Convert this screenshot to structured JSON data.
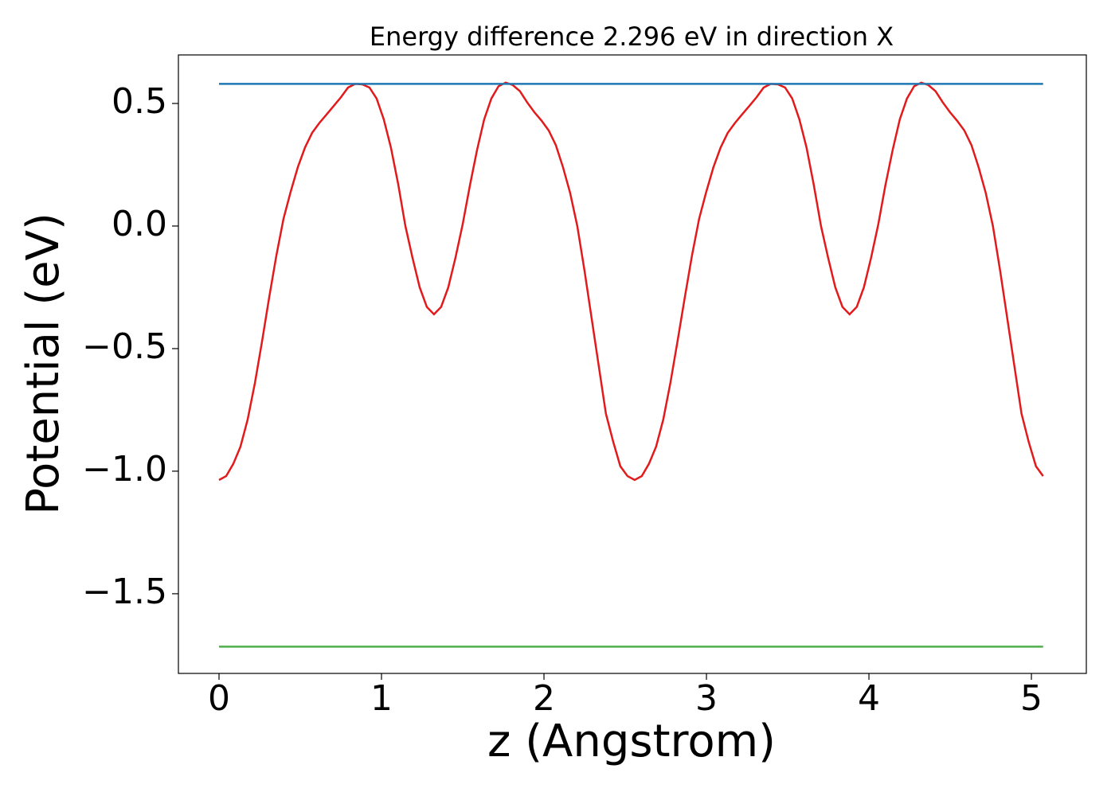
{
  "chart_data": {
    "type": "line",
    "title": "Energy difference 2.296 eV in direction X",
    "xlabel": "z (Angstrom)",
    "ylabel": "Potential (eV)",
    "xlim": [
      -0.25,
      5.338
    ],
    "ylim": [
      -1.825,
      0.698
    ],
    "xticks": [
      0,
      1,
      2,
      3,
      4,
      5
    ],
    "yticks": [
      0.5,
      {
        "value": 0,
        "label": "0.0"
      },
      {
        "value": -0.5,
        "label": "−0.5"
      },
      {
        "value": -1,
        "label": "−1.0"
      },
      {
        "value": -1.5,
        "label": "−1.5"
      }
    ],
    "grid": false,
    "series": [
      {
        "color": "#e31a1c",
        "x": [
          0,
          0.044,
          0.088,
          0.132,
          0.176,
          0.221,
          0.265,
          0.309,
          0.353,
          0.397,
          0.441,
          0.485,
          0.529,
          0.573,
          0.617,
          0.662,
          0.706,
          0.75,
          0.794,
          0.838,
          0.882,
          0.926,
          0.97,
          1.014,
          1.058,
          1.103,
          1.147,
          1.191,
          1.235,
          1.279,
          1.323,
          1.367,
          1.411,
          1.455,
          1.499,
          1.544,
          1.588,
          1.632,
          1.676,
          1.72,
          1.764,
          1.808,
          1.852,
          1.896,
          1.94,
          1.985,
          2.029,
          2.073,
          2.117,
          2.161,
          2.205,
          2.249,
          2.293,
          2.337,
          2.381,
          2.426,
          2.47,
          2.514,
          2.558,
          2.602,
          2.646,
          2.69,
          2.734,
          2.778,
          2.822,
          2.867,
          2.911,
          2.955,
          2.999,
          3.043,
          3.087,
          3.131,
          3.175,
          3.219,
          3.264,
          3.308,
          3.352,
          3.396,
          3.44,
          3.484,
          3.528,
          3.572,
          3.616,
          3.66,
          3.705,
          3.749,
          3.793,
          3.837,
          3.881,
          3.925,
          3.969,
          4.013,
          4.057,
          4.101,
          4.146,
          4.19,
          4.234,
          4.278,
          4.322,
          4.366,
          4.41,
          4.454,
          4.498,
          4.542,
          4.587,
          4.631,
          4.675,
          4.719,
          4.763,
          4.807,
          4.851,
          4.895,
          4.939,
          4.983,
          5.028,
          5.072
        ],
        "values": [
          -1.036,
          -1.02,
          -0.97,
          -0.9,
          -0.79,
          -0.64,
          -0.47,
          -0.29,
          -0.12,
          0.03,
          0.14,
          0.24,
          0.32,
          0.38,
          0.42,
          0.455,
          0.49,
          0.525,
          0.565,
          0.58,
          0.578,
          0.565,
          0.52,
          0.435,
          0.32,
          0.17,
          0.0,
          -0.13,
          -0.25,
          -0.33,
          -0.36,
          -0.33,
          -0.25,
          -0.13,
          0.005,
          0.165,
          0.31,
          0.435,
          0.52,
          0.57,
          0.585,
          0.575,
          0.55,
          0.505,
          0.465,
          0.43,
          0.39,
          0.33,
          0.24,
          0.135,
          0.0,
          -0.18,
          -0.375,
          -0.57,
          -0.765,
          -0.88,
          -0.98,
          -1.02,
          -1.036,
          -1.02,
          -0.97,
          -0.9,
          -0.79,
          -0.64,
          -0.47,
          -0.29,
          -0.12,
          0.03,
          0.14,
          0.24,
          0.32,
          0.38,
          0.42,
          0.455,
          0.49,
          0.525,
          0.565,
          0.58,
          0.578,
          0.565,
          0.52,
          0.435,
          0.32,
          0.17,
          0.0,
          -0.13,
          -0.25,
          -0.33,
          -0.36,
          -0.33,
          -0.25,
          -0.13,
          0.005,
          0.165,
          0.31,
          0.435,
          0.52,
          0.57,
          0.585,
          0.575,
          0.55,
          0.505,
          0.465,
          0.43,
          0.39,
          0.33,
          0.24,
          0.135,
          0.0,
          -0.18,
          -0.375,
          -0.57,
          -0.765,
          -0.88,
          -0.98,
          -1.02
        ]
      },
      {
        "color": "#1f77b4",
        "x": [
          0,
          5.072
        ],
        "values": [
          0.58,
          0.58
        ]
      },
      {
        "color": "#4daf4a",
        "x": [
          0,
          5.072
        ],
        "values": [
          -1.716,
          -1.716
        ]
      }
    ]
  }
}
